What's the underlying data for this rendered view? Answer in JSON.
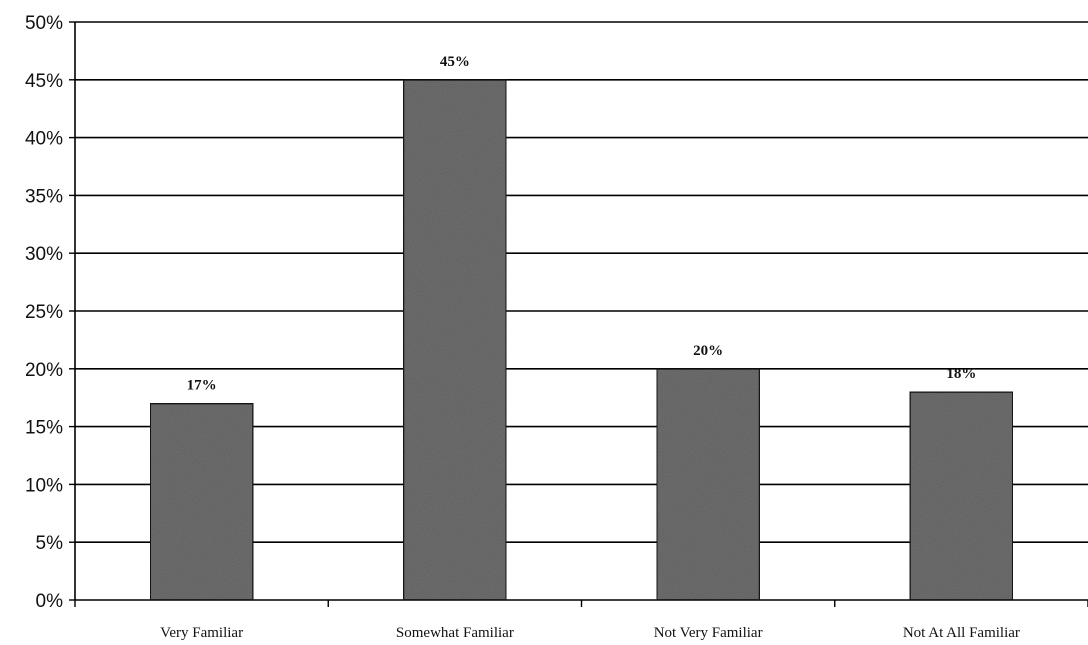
{
  "chart_data": {
    "type": "bar",
    "title": "",
    "xlabel": "",
    "ylabel": "",
    "categories": [
      "Very Familiar",
      "Somewhat Familiar",
      "Not Very Familiar",
      "Not At All Familiar"
    ],
    "values": [
      17,
      45,
      20,
      18
    ],
    "data_labels": [
      "17%",
      "45%",
      "20%",
      "18%"
    ],
    "ylim": [
      0,
      50
    ],
    "y_ticks": [
      0,
      5,
      10,
      15,
      20,
      25,
      30,
      35,
      40,
      45,
      50
    ],
    "y_tick_labels": [
      "0%",
      "5%",
      "10%",
      "15%",
      "20%",
      "25%",
      "30%",
      "35%",
      "40%",
      "45%",
      "50%"
    ],
    "grid": true,
    "legend": "none",
    "bar_color": "#6f6f6f",
    "bar_edge_color": "#1a1a1a",
    "grid_color": "#000000"
  }
}
